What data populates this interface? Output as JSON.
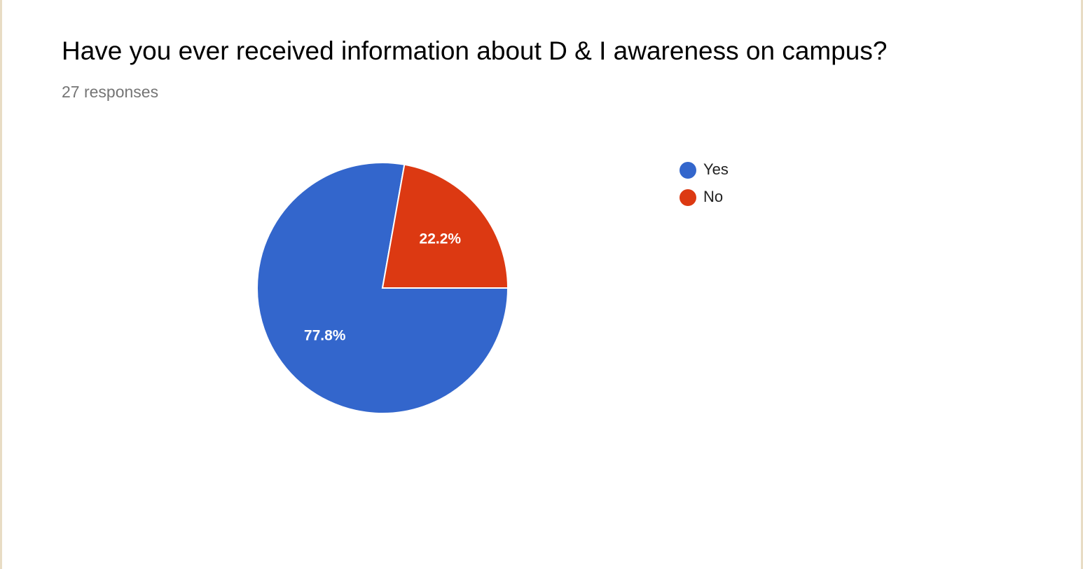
{
  "chart_data": {
    "type": "pie",
    "title": "Have you ever received information about D & I awareness on campus?",
    "subtitle": "27 responses",
    "categories": [
      "Yes",
      "No"
    ],
    "values": [
      77.8,
      22.2
    ],
    "value_labels": [
      "77.8%",
      "22.2%"
    ],
    "colors": [
      "#3366cc",
      "#dc3912"
    ],
    "legend": "right"
  }
}
